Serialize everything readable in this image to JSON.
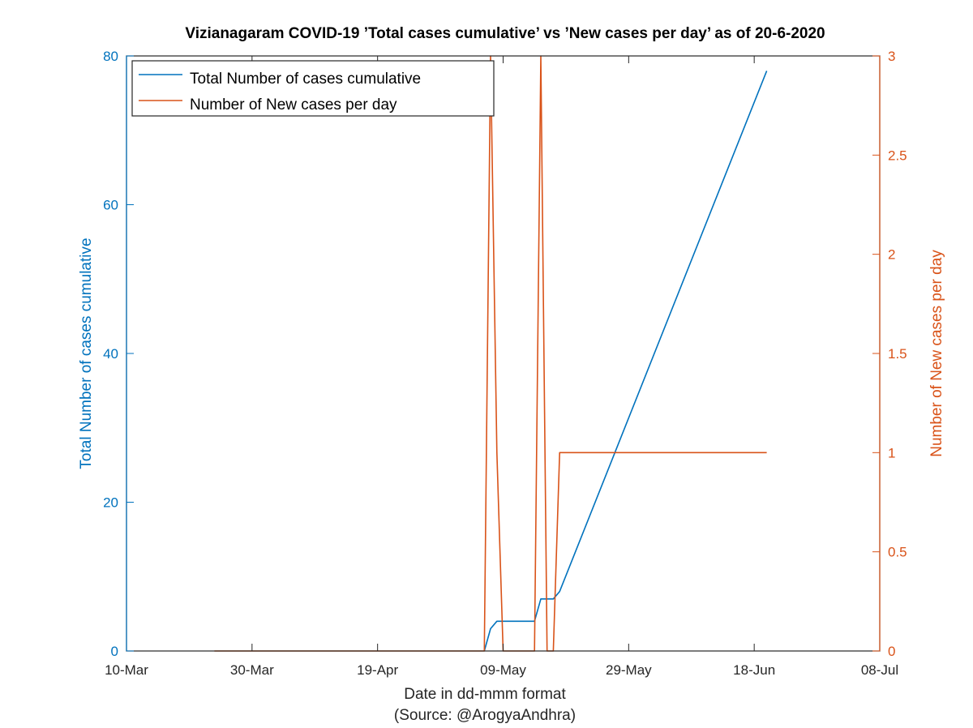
{
  "chart_data": {
    "type": "line",
    "title": "Vizianagaram COVID-19 ’Total cases cumulative’ vs ’New cases per day’ as of 20-6-2020",
    "xlabel": "Date in dd-mmm format",
    "source_note": "(Source: @ArogyaAndhra)",
    "ylabel_left": "Total Number of cases cumulative",
    "ylabel_right": "Number of New cases per day",
    "x_range": [
      "2020-03-10",
      "2020-07-08"
    ],
    "x_ticks": [
      {
        "date": "2020-03-10",
        "label": "10-Mar"
      },
      {
        "date": "2020-03-30",
        "label": "30-Mar"
      },
      {
        "date": "2020-04-19",
        "label": "19-Apr"
      },
      {
        "date": "2020-05-09",
        "label": "09-May"
      },
      {
        "date": "2020-05-29",
        "label": "29-May"
      },
      {
        "date": "2020-06-18",
        "label": "18-Jun"
      },
      {
        "date": "2020-07-08",
        "label": "08-Jul"
      }
    ],
    "ylim_left": [
      0,
      80
    ],
    "yticks_left": [
      "0",
      "20",
      "40",
      "60",
      "80"
    ],
    "ylim_right": [
      0,
      3
    ],
    "yticks_right": [
      "0",
      "0.5",
      "1",
      "1.5",
      "2",
      "2.5",
      "3"
    ],
    "grid": false,
    "legend_position": "top-left",
    "colors": {
      "left_series": "#0072BD",
      "right_series": "#D95319"
    },
    "series": [
      {
        "name": "Total Number of cases cumulative",
        "axis": "left",
        "x": [
          "2020-05-06",
          "2020-05-07",
          "2020-05-08",
          "2020-05-09",
          "2020-05-10",
          "2020-05-14",
          "2020-05-15",
          "2020-05-16",
          "2020-05-17",
          "2020-05-18",
          "2020-06-20"
        ],
        "y": [
          0,
          3,
          4,
          4,
          4,
          4,
          7,
          7,
          7,
          8,
          78
        ]
      },
      {
        "name": "Number of New cases per day",
        "axis": "right",
        "x": [
          "2020-03-24",
          "2020-05-06",
          "2020-05-07",
          "2020-05-08",
          "2020-05-09",
          "2020-05-10",
          "2020-05-11",
          "2020-05-13",
          "2020-05-14",
          "2020-05-15",
          "2020-05-16",
          "2020-05-17",
          "2020-05-18",
          "2020-05-19",
          "2020-06-20"
        ],
        "y": [
          0,
          0,
          3,
          1,
          0,
          0,
          0,
          0,
          0,
          3,
          0,
          0,
          1,
          1,
          1
        ]
      }
    ]
  }
}
